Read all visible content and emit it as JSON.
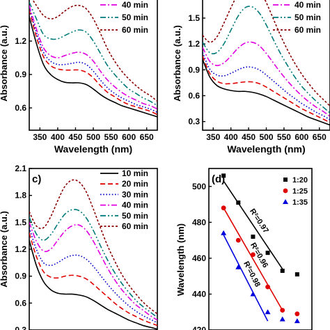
{
  "chart_data": [
    {
      "panel": "a",
      "type": "line",
      "xlabel": "Wavelength (nm)",
      "ylabel": "Absorbance (a.u.)",
      "xlim": [
        320,
        680
      ],
      "ylim": [
        0.4,
        1.6
      ],
      "xticks": [
        350,
        400,
        450,
        500,
        550,
        600,
        650
      ],
      "yticks": [
        0.6,
        0.9,
        1.2
      ],
      "legend_position": "top-right",
      "legend": [
        "40 min",
        "50 min",
        "60 min"
      ],
      "series": [
        {
          "name": "10 min",
          "color": "#000000",
          "dash": "solid",
          "x": [
            320,
            340,
            360,
            380,
            400,
            420,
            440,
            460,
            480,
            500,
            520,
            540,
            560,
            580,
            600,
            620,
            640,
            660,
            680
          ],
          "y": [
            1.42,
            1.18,
            0.99,
            0.9,
            0.855,
            0.83,
            0.825,
            0.825,
            0.81,
            0.77,
            0.72,
            0.68,
            0.65,
            0.62,
            0.6,
            0.58,
            0.56,
            0.54,
            0.52
          ]
        },
        {
          "name": "20 min",
          "color": "#e00000",
          "dash": "dash",
          "x": [
            320,
            340,
            360,
            380,
            400,
            420,
            440,
            460,
            480,
            500,
            520,
            540,
            560,
            580,
            600,
            620,
            640,
            660,
            680
          ],
          "y": [
            1.48,
            1.24,
            1.06,
            0.98,
            0.95,
            0.94,
            0.94,
            0.94,
            0.92,
            0.87,
            0.8,
            0.74,
            0.7,
            0.66,
            0.63,
            0.61,
            0.59,
            0.57,
            0.54
          ]
        },
        {
          "name": "30 min",
          "color": "#0000cc",
          "dash": "dot",
          "x": [
            320,
            340,
            360,
            380,
            400,
            420,
            440,
            460,
            480,
            500,
            520,
            540,
            560,
            580,
            600,
            620,
            640,
            660,
            680
          ],
          "y": [
            1.5,
            1.28,
            1.1,
            1.02,
            0.99,
            0.99,
            1.0,
            1.01,
            0.99,
            0.93,
            0.85,
            0.78,
            0.73,
            0.69,
            0.66,
            0.63,
            0.61,
            0.59,
            0.56
          ]
        },
        {
          "name": "40 min",
          "color": "#e000e0",
          "dash": "dashdot",
          "x": [
            320,
            340,
            360,
            380,
            400,
            420,
            440,
            460,
            480,
            500,
            520,
            540,
            560,
            580,
            600,
            620,
            640,
            660,
            680
          ],
          "y": [
            1.52,
            1.31,
            1.14,
            1.07,
            1.05,
            1.07,
            1.09,
            1.1,
            1.08,
            1.02,
            0.93,
            0.85,
            0.79,
            0.74,
            0.7,
            0.67,
            0.64,
            0.62,
            0.59
          ]
        },
        {
          "name": "50 min",
          "color": "#007a7a",
          "dash": "dashdotdot",
          "x": [
            320,
            340,
            360,
            380,
            400,
            420,
            440,
            460,
            480,
            500,
            520,
            540,
            560,
            580,
            600,
            620,
            640,
            660,
            680
          ],
          "y": [
            1.55,
            1.4,
            1.26,
            1.22,
            1.22,
            1.25,
            1.28,
            1.3,
            1.28,
            1.2,
            1.09,
            0.98,
            0.9,
            0.83,
            0.77,
            0.73,
            0.69,
            0.66,
            0.62
          ]
        },
        {
          "name": "60 min",
          "color": "#8b0000",
          "dash": "shortdash",
          "x": [
            320,
            340,
            360,
            380,
            400,
            420,
            440,
            460,
            480,
            500,
            520,
            540,
            560,
            580,
            600,
            620,
            640,
            660,
            680
          ],
          "y": [
            1.62,
            1.52,
            1.43,
            1.4,
            1.42,
            1.47,
            1.51,
            1.52,
            1.49,
            1.4,
            1.27,
            1.13,
            1.02,
            0.93,
            0.86,
            0.8,
            0.75,
            0.71,
            0.66
          ]
        }
      ]
    },
    {
      "panel": "b",
      "type": "line",
      "xlabel": "Wavelength (nm)",
      "ylabel": "Absorbance (a.u.)",
      "xlim": [
        320,
        680
      ],
      "ylim": [
        0.2,
        1.75
      ],
      "xticks": [
        350,
        400,
        450,
        500,
        550,
        600,
        650
      ],
      "yticks": [
        0.3,
        0.6,
        0.9,
        1.2,
        1.5
      ],
      "legend_position": "top-right",
      "legend": [
        "40 min",
        "50 min",
        "60 min"
      ],
      "series": [
        {
          "name": "10 min",
          "color": "#000000",
          "dash": "solid",
          "x": [
            320,
            340,
            360,
            380,
            400,
            420,
            440,
            460,
            480,
            500,
            520,
            540,
            560,
            580,
            600,
            620,
            640,
            660,
            680
          ],
          "y": [
            1.02,
            0.82,
            0.72,
            0.68,
            0.66,
            0.65,
            0.65,
            0.64,
            0.62,
            0.59,
            0.55,
            0.51,
            0.47,
            0.43,
            0.39,
            0.35,
            0.32,
            0.29,
            0.26
          ]
        },
        {
          "name": "20 min",
          "color": "#e00000",
          "dash": "dash",
          "x": [
            320,
            340,
            360,
            380,
            400,
            420,
            440,
            460,
            480,
            500,
            520,
            540,
            560,
            580,
            600,
            620,
            640,
            660,
            680
          ],
          "y": [
            1.06,
            0.86,
            0.77,
            0.74,
            0.74,
            0.75,
            0.76,
            0.76,
            0.74,
            0.7,
            0.65,
            0.6,
            0.55,
            0.5,
            0.45,
            0.41,
            0.37,
            0.33,
            0.29
          ]
        },
        {
          "name": "30 min",
          "color": "#0000cc",
          "dash": "dot",
          "x": [
            320,
            340,
            360,
            380,
            400,
            420,
            440,
            460,
            480,
            500,
            520,
            540,
            560,
            580,
            600,
            620,
            640,
            660,
            680
          ],
          "y": [
            1.1,
            0.91,
            0.84,
            0.83,
            0.86,
            0.9,
            0.93,
            0.93,
            0.9,
            0.84,
            0.77,
            0.7,
            0.63,
            0.57,
            0.51,
            0.46,
            0.41,
            0.37,
            0.32
          ]
        },
        {
          "name": "40 min",
          "color": "#e000e0",
          "dash": "dashdot",
          "x": [
            320,
            340,
            360,
            380,
            400,
            420,
            440,
            460,
            480,
            500,
            520,
            540,
            560,
            580,
            600,
            620,
            640,
            660,
            680
          ],
          "y": [
            1.16,
            1.0,
            0.95,
            0.98,
            1.06,
            1.15,
            1.21,
            1.22,
            1.18,
            1.09,
            0.98,
            0.87,
            0.77,
            0.68,
            0.6,
            0.53,
            0.47,
            0.42,
            0.36
          ]
        },
        {
          "name": "50 min",
          "color": "#007a7a",
          "dash": "dashdotdot",
          "x": [
            320,
            340,
            360,
            380,
            400,
            420,
            440,
            460,
            480,
            500,
            520,
            540,
            560,
            580,
            600,
            620,
            640,
            660,
            680
          ],
          "y": [
            1.22,
            1.1,
            1.1,
            1.2,
            1.36,
            1.52,
            1.62,
            1.63,
            1.56,
            1.42,
            1.25,
            1.09,
            0.95,
            0.82,
            0.71,
            0.62,
            0.54,
            0.47,
            0.4
          ]
        },
        {
          "name": "60 min",
          "color": "#8b0000",
          "dash": "shortdash",
          "x": [
            320,
            340,
            360,
            380,
            400,
            420,
            440,
            460,
            480,
            500,
            520,
            540,
            560,
            580,
            600,
            620,
            640,
            660,
            680
          ],
          "y": [
            1.3,
            1.22,
            1.28,
            1.44,
            1.62,
            1.78,
            1.88,
            1.9,
            1.83,
            1.68,
            1.49,
            1.3,
            1.13,
            0.98,
            0.85,
            0.74,
            0.64,
            0.56,
            0.48
          ]
        }
      ]
    },
    {
      "panel": "c",
      "type": "line",
      "panel_label": "c)",
      "ylabel": "Absorbance (a.u.)",
      "xlim": [
        320,
        680
      ],
      "ylim": [
        0.3,
        2.1
      ],
      "yticks": [
        0.3,
        0.6,
        0.9,
        1.2,
        1.5,
        1.8,
        2.1
      ],
      "legend_position": "top-right",
      "legend": [
        "10 min",
        "20 min",
        "30 min",
        "40 min",
        "50 min",
        "60 min"
      ],
      "series": [
        {
          "name": "10 min",
          "color": "#000000",
          "dash": "solid",
          "x": [
            320,
            340,
            360,
            380,
            400,
            420,
            440,
            460,
            480,
            500,
            520,
            540,
            560,
            580,
            600,
            620,
            640,
            660,
            680
          ],
          "y": [
            1.3,
            1.02,
            0.84,
            0.75,
            0.71,
            0.7,
            0.7,
            0.69,
            0.67,
            0.63,
            0.58,
            0.53,
            0.49,
            0.45,
            0.41,
            0.38,
            0.35,
            0.33,
            0.31
          ]
        },
        {
          "name": "20 min",
          "color": "#e00000",
          "dash": "dash",
          "x": [
            320,
            340,
            360,
            380,
            400,
            420,
            440,
            460,
            480,
            500,
            520,
            540,
            560,
            580,
            600,
            620,
            640,
            660,
            680
          ],
          "y": [
            1.38,
            1.12,
            0.95,
            0.89,
            0.88,
            0.9,
            0.91,
            0.9,
            0.87,
            0.81,
            0.74,
            0.67,
            0.6,
            0.54,
            0.49,
            0.45,
            0.41,
            0.38,
            0.35
          ]
        },
        {
          "name": "30 min",
          "color": "#0000cc",
          "dash": "dot",
          "x": [
            320,
            340,
            360,
            380,
            400,
            420,
            440,
            460,
            480,
            500,
            520,
            540,
            560,
            580,
            600,
            620,
            640,
            660,
            680
          ],
          "y": [
            1.44,
            1.2,
            1.05,
            1.02,
            1.05,
            1.1,
            1.13,
            1.13,
            1.09,
            1.01,
            0.91,
            0.81,
            0.72,
            0.64,
            0.57,
            0.51,
            0.46,
            0.42,
            0.38
          ]
        },
        {
          "name": "40 min",
          "color": "#e000e0",
          "dash": "dashdot",
          "x": [
            320,
            340,
            360,
            380,
            400,
            420,
            440,
            460,
            480,
            500,
            520,
            540,
            560,
            580,
            600,
            620,
            640,
            660,
            680
          ],
          "y": [
            1.5,
            1.29,
            1.18,
            1.2,
            1.3,
            1.4,
            1.46,
            1.47,
            1.41,
            1.29,
            1.14,
            0.99,
            0.86,
            0.75,
            0.66,
            0.58,
            0.52,
            0.46,
            0.41
          ]
        },
        {
          "name": "50 min",
          "color": "#007a7a",
          "dash": "dashdotdot",
          "x": [
            320,
            340,
            360,
            380,
            400,
            420,
            440,
            460,
            480,
            500,
            520,
            540,
            560,
            580,
            600,
            620,
            640,
            660,
            680
          ],
          "y": [
            1.56,
            1.37,
            1.3,
            1.36,
            1.48,
            1.59,
            1.64,
            1.63,
            1.55,
            1.41,
            1.24,
            1.08,
            0.94,
            0.82,
            0.72,
            0.63,
            0.56,
            0.5,
            0.44
          ]
        },
        {
          "name": "60 min",
          "color": "#8b0000",
          "dash": "shortdash",
          "x": [
            320,
            340,
            360,
            380,
            400,
            420,
            440,
            460,
            480,
            500,
            520,
            540,
            560,
            580,
            600,
            620,
            640,
            660,
            680
          ],
          "y": [
            1.62,
            1.46,
            1.44,
            1.56,
            1.74,
            1.9,
            1.97,
            1.95,
            1.84,
            1.65,
            1.44,
            1.24,
            1.07,
            0.92,
            0.8,
            0.7,
            0.61,
            0.54,
            0.48
          ]
        }
      ]
    },
    {
      "panel": "d",
      "type": "scatter",
      "panel_label": "(d)",
      "ylabel": "Wavelength (nm)",
      "xlim": [
        0,
        70
      ],
      "ylim": [
        420,
        510
      ],
      "yticks": [
        420,
        440,
        460,
        480,
        500
      ],
      "legend_position": "top-right",
      "series": [
        {
          "name": "1:20",
          "color": "#000000",
          "marker": "square",
          "x": [
            10,
            20,
            30,
            40,
            50,
            60
          ],
          "y": [
            506,
            491,
            472,
            463,
            453,
            451
          ],
          "fit_x": [
            10,
            50
          ],
          "fit_y": [
            503,
            454
          ],
          "r2_label": "R²=0.97"
        },
        {
          "name": "1:25",
          "color": "#e00000",
          "marker": "circle",
          "x": [
            10,
            20,
            30,
            40,
            50,
            60
          ],
          "y": [
            488,
            470,
            462,
            444,
            431,
            429
          ],
          "fit_x": [
            10,
            50
          ],
          "fit_y": [
            488,
            431
          ],
          "r2_label": "R²=0.96"
        },
        {
          "name": "1:35",
          "color": "#0000dd",
          "marker": "triangle",
          "x": [
            10,
            20,
            30,
            40,
            50,
            60
          ],
          "y": [
            474,
            455,
            440,
            430,
            426,
            425
          ],
          "fit_x": [
            10,
            40
          ],
          "fit_y": [
            473,
            425
          ],
          "r2_label": "R²=0.98"
        }
      ]
    }
  ]
}
